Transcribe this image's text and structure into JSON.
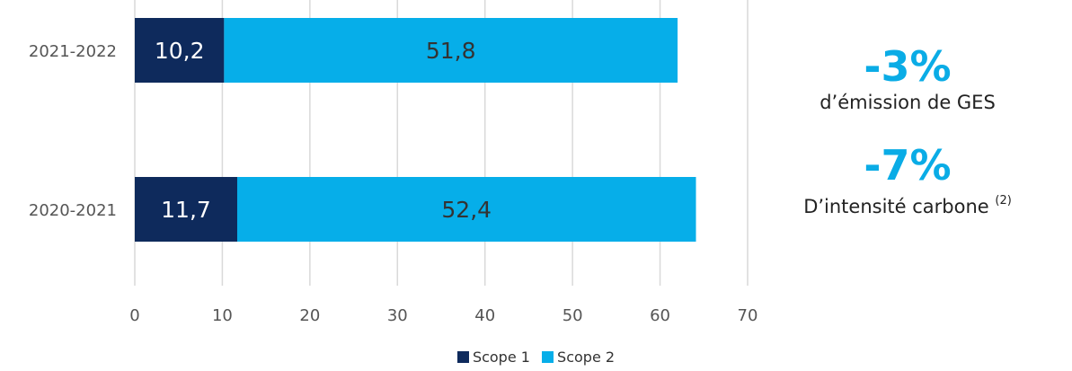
{
  "chart_data": {
    "type": "bar",
    "orientation": "horizontal",
    "stacked": true,
    "categories": [
      "2021-2022",
      "2020-2021"
    ],
    "series": [
      {
        "name": "Scope 1",
        "values": [
          10.2,
          11.7
        ],
        "labels": [
          "10,2",
          "11,7"
        ],
        "color": "#0e2a5c",
        "label_color": "#ffffff"
      },
      {
        "name": "Scope 2",
        "values": [
          51.8,
          52.4
        ],
        "labels": [
          "51,8",
          "52,4"
        ],
        "color": "#06aee9",
        "label_color": "#333333"
      }
    ],
    "xlim": [
      0,
      70
    ],
    "xticks": [
      "0",
      "10",
      "20",
      "30",
      "40",
      "50",
      "60",
      "70"
    ],
    "grid": "vertical",
    "legend": "bottom-center"
  },
  "stats": [
    {
      "value": "-3%",
      "caption": "d’émission de GES",
      "note": ""
    },
    {
      "value": "-7%",
      "caption": "D’intensité carbone",
      "note": "(2)"
    }
  ]
}
